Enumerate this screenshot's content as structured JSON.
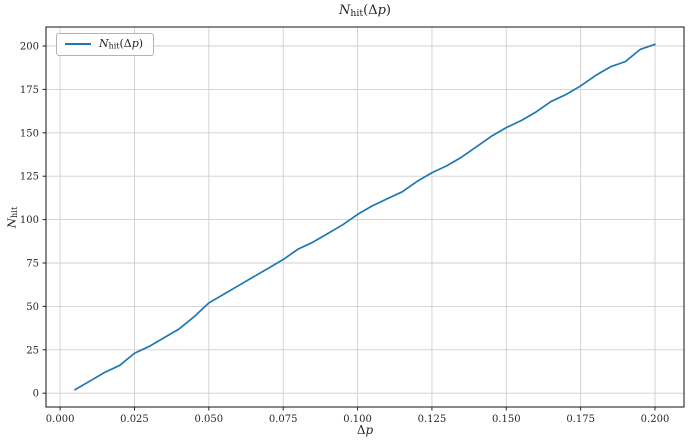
{
  "labels": {
    "var": "N",
    "sub": "hit",
    "open": "(",
    "delta": "Δ",
    "param": "p",
    "close": ")"
  },
  "chart_data": {
    "type": "line",
    "title": "N_hit(Δp)",
    "xlabel": "Δp",
    "ylabel": "N_hit",
    "legend": [
      "N_hit(Δp)"
    ],
    "legend_position": "upper left",
    "grid": true,
    "x": [
      0.005,
      0.01,
      0.015,
      0.02,
      0.025,
      0.03,
      0.035,
      0.04,
      0.045,
      0.05,
      0.055,
      0.06,
      0.065,
      0.07,
      0.075,
      0.08,
      0.085,
      0.09,
      0.095,
      0.1,
      0.105,
      0.11,
      0.115,
      0.12,
      0.125,
      0.13,
      0.135,
      0.14,
      0.145,
      0.15,
      0.155,
      0.16,
      0.165,
      0.17,
      0.175,
      0.18,
      0.185,
      0.19,
      0.195,
      0.2
    ],
    "y": [
      2,
      7,
      12,
      16,
      23,
      27,
      32,
      37,
      44,
      52,
      57,
      62,
      67,
      72,
      77,
      83,
      87,
      92,
      97,
      103,
      108,
      112,
      116,
      122,
      127,
      131,
      136,
      142,
      148,
      153,
      157,
      162,
      168,
      172,
      177,
      183,
      188,
      191,
      198,
      201
    ],
    "x_tick_values": [
      0,
      0.025,
      0.05,
      0.075,
      0.1,
      0.125,
      0.15,
      0.175,
      0.2
    ],
    "x_tick_labels": [
      "0.000",
      "0.025",
      "0.050",
      "0.075",
      "0.100",
      "0.125",
      "0.150",
      "0.175",
      "0.200"
    ],
    "y_tick_values": [
      0,
      25,
      50,
      75,
      100,
      125,
      150,
      175,
      200
    ],
    "y_tick_labels": [
      "0",
      "25",
      "50",
      "75",
      "100",
      "125",
      "150",
      "175",
      "200"
    ],
    "xlim": [
      -0.00475,
      0.20975
    ],
    "ylim": [
      -7.95,
      210.95
    ],
    "line_color": "#1f77b4",
    "grid_color": "#cfcfcf",
    "spine_color": "#262626",
    "background_color": "#ffffff"
  }
}
